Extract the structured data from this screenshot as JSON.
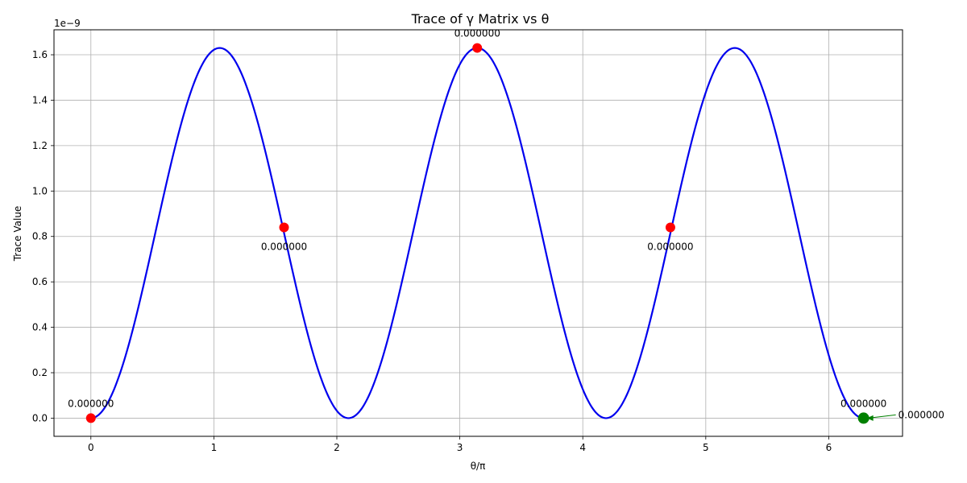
{
  "chart_data": {
    "type": "line",
    "title": "Trace of γ Matrix vs θ",
    "xlabel": "θ/π",
    "ylabel": "Trace Value",
    "offset_text": "1e−9",
    "xlim": [
      -0.3,
      6.6
    ],
    "ylim": [
      -0.08,
      1.71
    ],
    "xticks": [
      0,
      1,
      2,
      3,
      4,
      5,
      6
    ],
    "xtick_labels": [
      "0",
      "1",
      "2",
      "3",
      "4",
      "5",
      "6"
    ],
    "yticks": [
      0.0,
      0.2,
      0.4,
      0.6,
      0.8,
      1.0,
      1.2,
      1.4,
      1.6
    ],
    "ytick_labels": [
      "0.0",
      "0.2",
      "0.4",
      "0.6",
      "0.8",
      "1.0",
      "1.2",
      "1.4",
      "1.6"
    ],
    "grid": true,
    "series": [
      {
        "color": "#0000ee",
        "amplitude": 1.63,
        "x_range": [
          0,
          6.2832
        ]
      }
    ],
    "highlight_points": [
      {
        "x": 0.0,
        "y": 0.0,
        "label": "0.000000",
        "color": "#ff0000",
        "label_pos": "above"
      },
      {
        "x": 1.5708,
        "y": 0.84,
        "label": "0.000000",
        "color": "#ff0000",
        "label_pos": "below"
      },
      {
        "x": 3.1416,
        "y": 1.63,
        "label": "0.000000",
        "color": "#ff0000",
        "label_pos": "above"
      },
      {
        "x": 4.7124,
        "y": 0.84,
        "label": "0.000000",
        "color": "#ff0000",
        "label_pos": "below"
      },
      {
        "x": 6.2832,
        "y": 0.0,
        "label": "0.000000",
        "color": "#ff0000",
        "label_pos": "above"
      }
    ],
    "arrow_annotation": {
      "x": 6.2832,
      "y": 0.0,
      "text": "0.000000",
      "color": "#008000"
    }
  }
}
